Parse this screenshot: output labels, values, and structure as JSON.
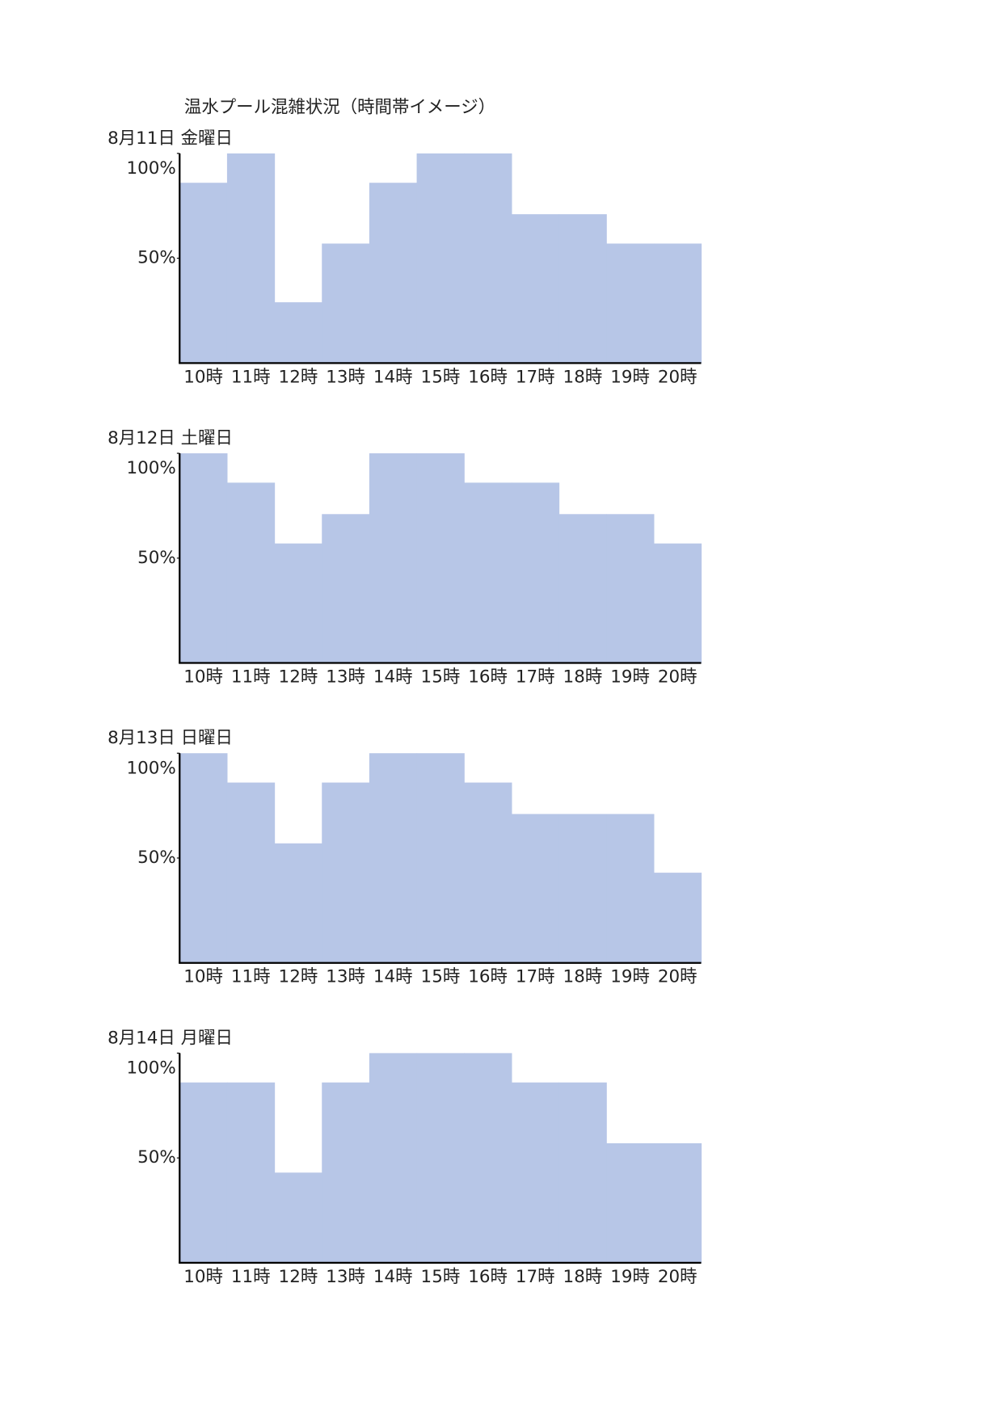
{
  "title": "温水プール混雑状況（時間帯イメージ）",
  "chart_data": [
    {
      "type": "bar",
      "title": "8月11日 金曜日",
      "categories": [
        "10時",
        "11時",
        "12時",
        "13時",
        "14時",
        "15時",
        "16時",
        "17時",
        "18時",
        "19時",
        "20時"
      ],
      "values": [
        86,
        100,
        29,
        57,
        86,
        100,
        100,
        71,
        71,
        57,
        57
      ],
      "color": "#b7c6e7",
      "ylim": [
        0,
        100
      ],
      "yticks": [
        {
          "value": 50,
          "label": "50%"
        },
        {
          "value": 100,
          "label": "100%"
        }
      ]
    },
    {
      "type": "bar",
      "title": "8月12日 土曜日",
      "categories": [
        "10時",
        "11時",
        "12時",
        "13時",
        "14時",
        "15時",
        "16時",
        "17時",
        "18時",
        "19時",
        "20時"
      ],
      "values": [
        100,
        86,
        57,
        71,
        100,
        100,
        86,
        86,
        71,
        71,
        57
      ],
      "color": "#b7c6e7",
      "ylim": [
        0,
        100
      ],
      "yticks": [
        {
          "value": 50,
          "label": "50%"
        },
        {
          "value": 100,
          "label": "100%"
        }
      ]
    },
    {
      "type": "bar",
      "title": "8月13日 日曜日",
      "categories": [
        "10時",
        "11時",
        "12時",
        "13時",
        "14時",
        "15時",
        "16時",
        "17時",
        "18時",
        "19時",
        "20時"
      ],
      "values": [
        100,
        86,
        57,
        86,
        100,
        100,
        86,
        71,
        71,
        71,
        43
      ],
      "color": "#b7c6e7",
      "ylim": [
        0,
        100
      ],
      "yticks": [
        {
          "value": 50,
          "label": "50%"
        },
        {
          "value": 100,
          "label": "100%"
        }
      ]
    },
    {
      "type": "bar",
      "title": "8月14日 月曜日",
      "categories": [
        "10時",
        "11時",
        "12時",
        "13時",
        "14時",
        "15時",
        "16時",
        "17時",
        "18時",
        "19時",
        "20時"
      ],
      "values": [
        86,
        86,
        43,
        86,
        100,
        100,
        100,
        86,
        86,
        57,
        57
      ],
      "color": "#b7c6e7",
      "ylim": [
        0,
        100
      ],
      "yticks": [
        {
          "value": 50,
          "label": "50%"
        },
        {
          "value": 100,
          "label": "100%"
        }
      ]
    }
  ]
}
